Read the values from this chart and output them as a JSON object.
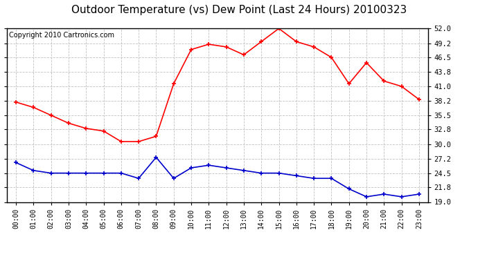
{
  "title": "Outdoor Temperature (vs) Dew Point (Last 24 Hours) 20100323",
  "copyright": "Copyright 2010 Cartronics.com",
  "x_labels": [
    "00:00",
    "01:00",
    "02:00",
    "03:00",
    "04:00",
    "05:00",
    "06:00",
    "07:00",
    "08:00",
    "09:00",
    "10:00",
    "11:00",
    "12:00",
    "13:00",
    "14:00",
    "15:00",
    "16:00",
    "17:00",
    "18:00",
    "19:00",
    "20:00",
    "21:00",
    "22:00",
    "23:00"
  ],
  "temp_data": [
    38.0,
    37.0,
    35.5,
    34.0,
    33.0,
    32.5,
    30.5,
    30.5,
    31.5,
    41.5,
    48.0,
    49.0,
    48.5,
    47.0,
    49.5,
    52.0,
    49.5,
    48.5,
    46.5,
    41.5,
    45.5,
    42.0,
    41.0,
    38.5
  ],
  "dew_data": [
    26.5,
    25.0,
    24.5,
    24.5,
    24.5,
    24.5,
    24.5,
    23.5,
    27.5,
    23.5,
    25.5,
    26.0,
    25.5,
    25.0,
    24.5,
    24.5,
    24.0,
    23.5,
    23.5,
    21.5,
    20.0,
    20.5,
    20.0,
    20.5
  ],
  "temp_color": "#ff0000",
  "dew_color": "#0000cc",
  "y_ticks": [
    19.0,
    21.8,
    24.5,
    27.2,
    30.0,
    32.8,
    35.5,
    38.2,
    41.0,
    43.8,
    46.5,
    49.2,
    52.0
  ],
  "y_min": 19.0,
  "y_max": 52.0,
  "bg_color": "#ffffff",
  "grid_color": "#c0c0c0",
  "title_fontsize": 11,
  "copyright_fontsize": 7
}
